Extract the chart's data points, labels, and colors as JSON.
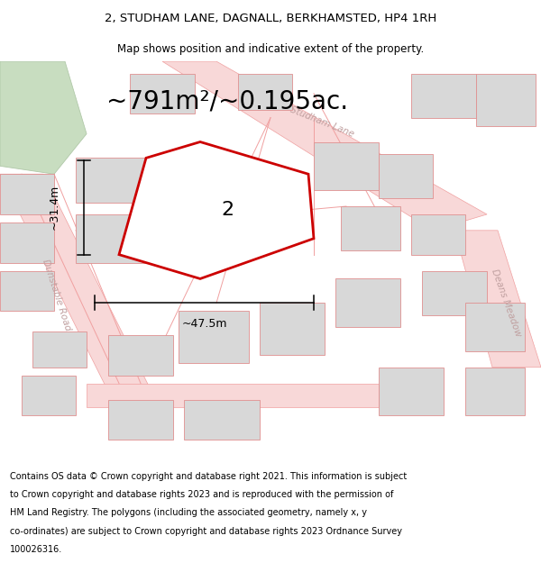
{
  "title_line1": "2, STUDHAM LANE, DAGNALL, BERKHAMSTED, HP4 1RH",
  "title_line2": "Map shows position and indicative extent of the property.",
  "area_text": "~791m²/~0.195ac.",
  "plot_number": "2",
  "dim_width": "~47.5m",
  "dim_height": "~31.4m",
  "footer_lines": [
    "Contains OS data © Crown copyright and database right 2021. This information is subject",
    "to Crown copyright and database rights 2023 and is reproduced with the permission of",
    "HM Land Registry. The polygons (including the associated geometry, namely x, y",
    "co-ordinates) are subject to Crown copyright and database rights 2023 Ordnance Survey",
    "100026316."
  ],
  "bg_color": "#ffffff",
  "highlight_color": "#cc0000",
  "road_color": "#f0a0a0",
  "road_fill": "#f8d8d8",
  "building_color": "#d8d8d8",
  "building_edge": "#e09090",
  "green_color": "#c8ddc0",
  "green_edge": "#b0c8a8",
  "road_label_color": "#c0a0a0",
  "dim_line_color": "#000000",
  "text_color": "#000000",
  "title_fontsize": 9.5,
  "subtitle_fontsize": 8.5,
  "area_fontsize": 20,
  "plot_num_fontsize": 16,
  "dim_fontsize": 9,
  "footer_fontsize": 7.0,
  "road_label_fontsize": 7.5
}
